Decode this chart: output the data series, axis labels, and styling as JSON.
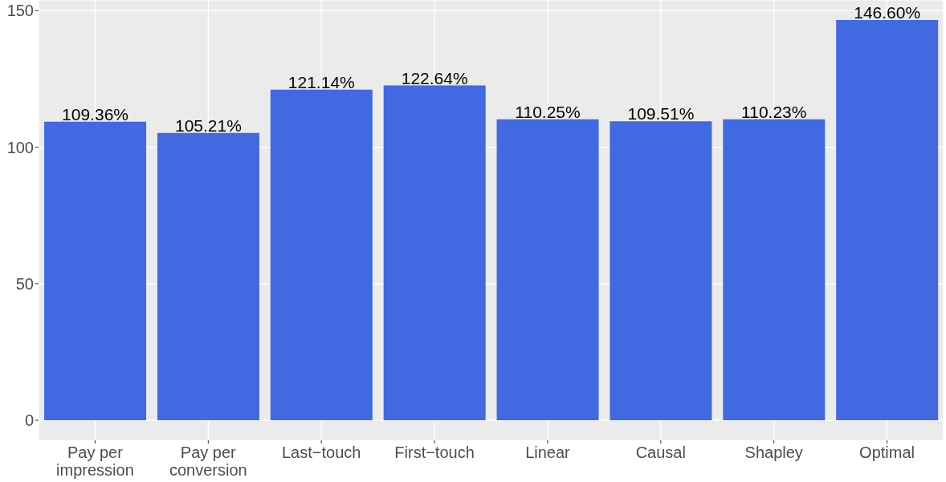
{
  "chart_data": {
    "type": "bar",
    "categories": [
      "Pay per\nimpression",
      "Pay per\nconversion",
      "Last−touch",
      "First−touch",
      "Linear",
      "Causal",
      "Shapley",
      "Optimal"
    ],
    "values": [
      109.36,
      105.21,
      121.14,
      122.64,
      110.25,
      109.51,
      110.23,
      146.6
    ],
    "value_labels": [
      "109.36%",
      "105.21%",
      "121.14%",
      "122.64%",
      "110.25%",
      "109.51%",
      "110.23%",
      "146.60%"
    ],
    "color": "#4169e1",
    "ylim": [
      -7.33,
      153.93
    ],
    "yticks": [
      0,
      50,
      100,
      150
    ],
    "grid": true
  }
}
